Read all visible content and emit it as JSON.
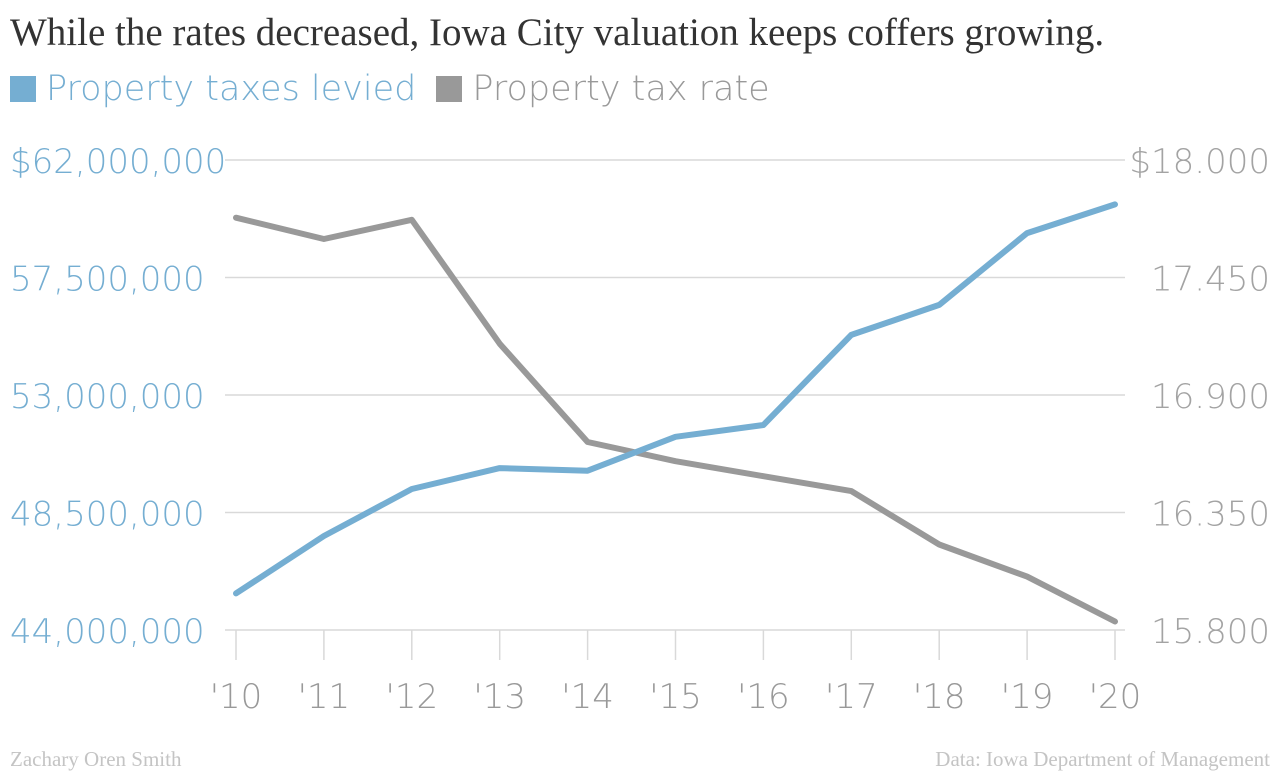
{
  "chart_data": {
    "type": "line",
    "title": "While the rates decreased, Iowa City valuation keeps coffers growing.",
    "categories": [
      "'10",
      "'11",
      "'12",
      "'13",
      "'14",
      "'15",
      "'16",
      "'17",
      "'18",
      "'19",
      "'20"
    ],
    "series": [
      {
        "name": "Property taxes levied",
        "axis": "left",
        "color": "#75aed2",
        "values": [
          45400000,
          47600000,
          49400000,
          50200000,
          50100000,
          51400000,
          51850000,
          55300000,
          56450000,
          59200000,
          60300000
        ]
      },
      {
        "name": "Property tax rate",
        "axis": "right",
        "color": "#999999",
        "values": [
          17.73,
          17.63,
          17.72,
          17.14,
          16.68,
          16.59,
          16.52,
          16.45,
          16.2,
          16.05,
          15.84
        ]
      }
    ],
    "y_left": {
      "range": [
        44000000,
        62000000
      ],
      "ticks": [
        "$62,000,000",
        "57,500,000",
        "53,000,000",
        "48,500,000",
        "44,000,000"
      ],
      "color": "#75aed2"
    },
    "y_right": {
      "range": [
        15.8,
        18.0
      ],
      "ticks": [
        "$18.000",
        "17.450",
        "16.900",
        "16.350",
        "15.800"
      ],
      "color": "#a3a3a3"
    },
    "grid": true,
    "legend_position": "top-left"
  },
  "footer": {
    "credit": "Zachary Oren Smith",
    "source": "Data: Iowa Department of Management"
  }
}
